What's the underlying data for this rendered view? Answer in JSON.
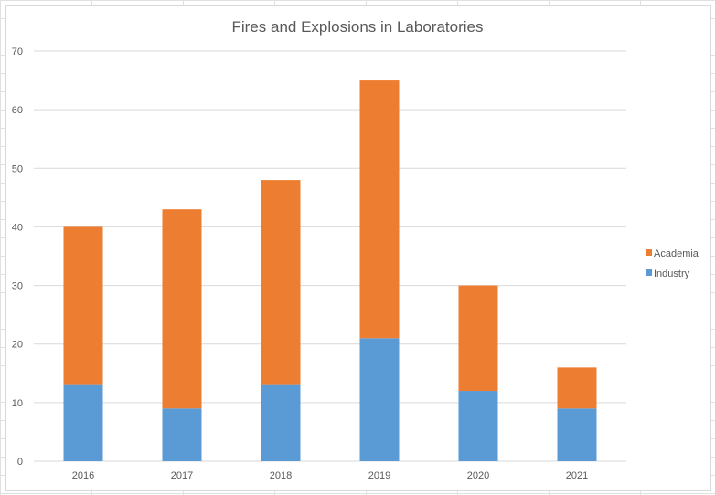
{
  "chart_data": {
    "type": "bar",
    "stacked": true,
    "title": "Fires and Explosions in Laboratories",
    "xlabel": "",
    "ylabel": "",
    "categories": [
      "2016",
      "2017",
      "2018",
      "2019",
      "2020",
      "2021"
    ],
    "series": [
      {
        "name": "Industry",
        "color": "#5b9bd5",
        "values": [
          13,
          9,
          13,
          21,
          12,
          9
        ]
      },
      {
        "name": "Academia",
        "color": "#ed7d31",
        "values": [
          27,
          34,
          35,
          44,
          18,
          7
        ]
      }
    ],
    "ylim": [
      0,
      70
    ],
    "yticks": [
      "0",
      "10",
      "20",
      "30",
      "40",
      "50",
      "60",
      "70"
    ],
    "grid": true,
    "legend": "right"
  }
}
